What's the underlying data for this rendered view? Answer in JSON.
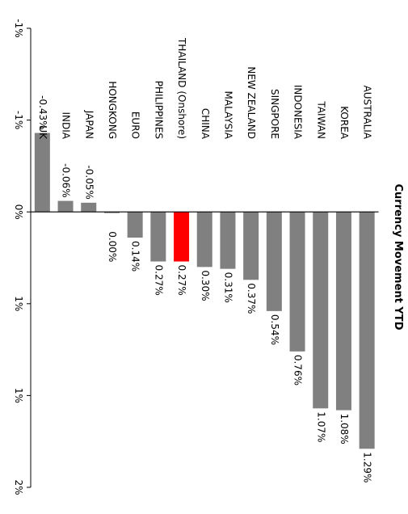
{
  "chart_data": {
    "type": "bar",
    "orientation": "rotated-90-clockwise",
    "title": "Currency Movement YTD",
    "categories": [
      "AUSTRALIA",
      "KOREA",
      "TAIWAN",
      "INDONESIA",
      "SINGPORE",
      "NEW ZEALAND",
      "MALAYSIA",
      "CHINA",
      "THAILAND (Onshore)",
      "PHILIPPINES",
      "EURO",
      "HONGKONG",
      "JAPAN",
      "INDIA",
      "UK"
    ],
    "values": [
      1.29,
      1.08,
      1.07,
      0.76,
      0.54,
      0.37,
      0.31,
      0.3,
      0.27,
      0.27,
      0.14,
      0.0,
      -0.05,
      -0.06,
      -0.43
    ],
    "data_labels": [
      "1.29%",
      "1.08%",
      "1.07%",
      "0.76%",
      "0.54%",
      "0.37%",
      "0.31%",
      "0.30%",
      "0.27%",
      "0.27%",
      "0.14%",
      "0.00%",
      "-0.05%",
      "-0.06%",
      "-0.43%"
    ],
    "value_axis": {
      "min": -1.0,
      "max": 1.5,
      "ticks": [
        -1.0,
        -0.5,
        0,
        0.5,
        1.0,
        1.5
      ],
      "tick_labels": [
        "-1%",
        "-1%",
        "0%",
        "1%",
        "1%",
        "2%"
      ]
    },
    "colors": {
      "bar": "#808080",
      "highlight": "#ff0000",
      "highlight_category": "THAILAND (Onshore)"
    },
    "grid": false,
    "legend": "none"
  }
}
